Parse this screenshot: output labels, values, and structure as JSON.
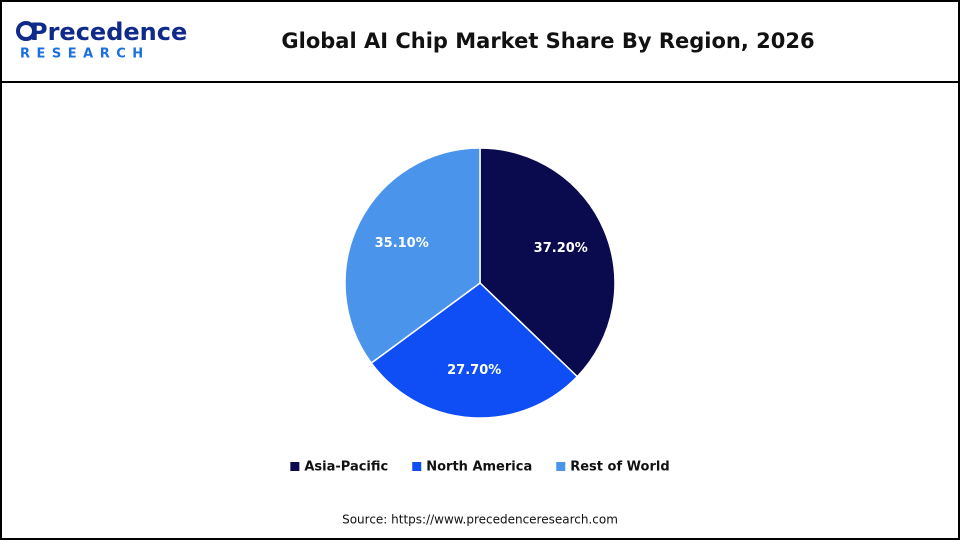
{
  "logo": {
    "name": "Precedence",
    "tagline": "RESEARCH"
  },
  "chart_data": {
    "type": "pie",
    "title": "Global AI Chip Market Share By Region, 2026",
    "categories": [
      "Asia-Pacific",
      "North America",
      "Rest of World"
    ],
    "values": [
      37.2,
      27.7,
      35.1
    ],
    "value_labels": [
      "37.20%",
      "27.70%",
      "35.10%"
    ],
    "colors": [
      "#0a0a4f",
      "#0f4ef5",
      "#4a94ec"
    ],
    "source": "Source: https://www.precedenceresearch.com"
  }
}
